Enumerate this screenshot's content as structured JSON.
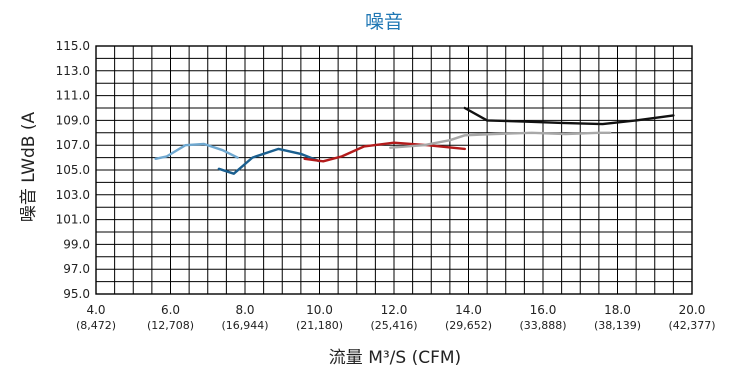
{
  "chart_data": {
    "type": "line",
    "title": "噪音",
    "xlabel": "流量 M³/S (CFM)",
    "ylabel": "噪音 LWdB (A",
    "xlim": [
      4.0,
      20.0
    ],
    "ylim": [
      95.0,
      115.0
    ],
    "grid": true,
    "x_ticks": [
      {
        "value": 4.0,
        "label": "4.0",
        "sublabel": "(8,472)"
      },
      {
        "value": 6.0,
        "label": "6.0",
        "sublabel": "(12,708)"
      },
      {
        "value": 8.0,
        "label": "8.0",
        "sublabel": "(16,944)"
      },
      {
        "value": 10.0,
        "label": "10.0",
        "sublabel": "(21,180)"
      },
      {
        "value": 12.0,
        "label": "12.0",
        "sublabel": "(25,416)"
      },
      {
        "value": 14.0,
        "label": "14.0",
        "sublabel": "(29,652)"
      },
      {
        "value": 16.0,
        "label": "16.0",
        "sublabel": "(33,888)"
      },
      {
        "value": 18.0,
        "label": "18.0",
        "sublabel": "(38,139)"
      },
      {
        "value": 20.0,
        "label": "20.0",
        "sublabel": "(42,377)"
      }
    ],
    "y_ticks": [
      "95.0",
      "97.0",
      "99.0",
      "101.0",
      "103.0",
      "105.0",
      "107.0",
      "109.0",
      "111.0",
      "113.0",
      "115.0"
    ],
    "series": [
      {
        "color": "#6fa8d0",
        "x": [
          5.6,
          5.9,
          6.4,
          6.9,
          7.4,
          7.8
        ],
        "y": [
          105.9,
          106.1,
          107.0,
          107.1,
          106.6,
          106.0
        ]
      },
      {
        "color": "#1a5f8f",
        "x": [
          7.3,
          7.7,
          8.2,
          8.9,
          9.5,
          10.0
        ],
        "y": [
          105.1,
          104.7,
          106.0,
          106.7,
          106.3,
          105.7
        ]
      },
      {
        "color": "#b31b1b",
        "x": [
          9.6,
          10.1,
          10.6,
          11.2,
          12.0,
          12.9,
          13.9
        ],
        "y": [
          105.9,
          105.7,
          106.1,
          106.9,
          107.2,
          107.0,
          106.7
        ]
      },
      {
        "color": "#a8a8a8",
        "x": [
          11.9,
          12.8,
          13.5,
          13.9,
          14.7,
          15.7,
          16.6,
          17.5,
          17.8
        ],
        "y": [
          106.8,
          107.0,
          107.4,
          107.8,
          107.9,
          108.0,
          107.9,
          108.0,
          108.0
        ]
      },
      {
        "color": "#111111",
        "x": [
          13.9,
          14.5,
          15.5,
          16.5,
          17.6,
          18.5,
          19.5
        ],
        "y": [
          110.0,
          109.0,
          108.9,
          108.8,
          108.7,
          109.0,
          109.4
        ]
      }
    ]
  }
}
